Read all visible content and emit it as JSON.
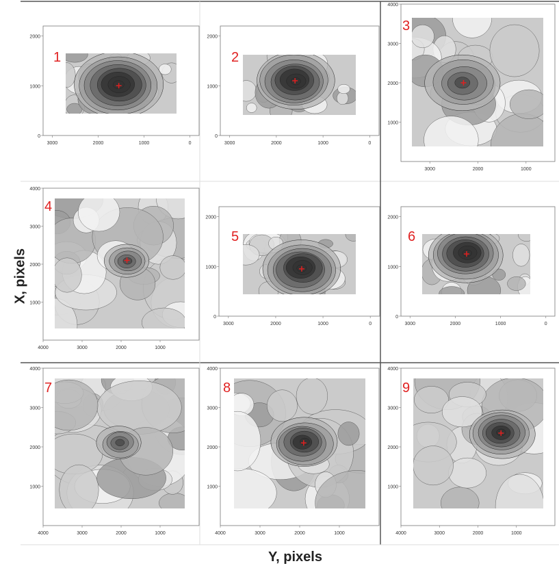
{
  "figure": {
    "xlabel": "Y, pixels",
    "ylabel": "X, pixels",
    "colors": {
      "peak_marker": "#e02020",
      "panel_number": "#e02020",
      "frame": "#555555"
    }
  },
  "chart_data": [
    {
      "type": "heatmap",
      "number": "1",
      "x_ticks": [
        "3000",
        "2000",
        "1000",
        "0"
      ],
      "y_ticks": [
        "2000",
        "1000",
        "0"
      ],
      "peak": {
        "x": 1550,
        "y": 1000
      },
      "peak_intensity": 0.85,
      "spread": 0.35
    },
    {
      "type": "heatmap",
      "number": "2",
      "x_ticks": [
        "3000",
        "2000",
        "1000",
        "0"
      ],
      "y_ticks": [
        "2000",
        "1000",
        "0"
      ],
      "peak": {
        "x": 1600,
        "y": 1100
      },
      "peak_intensity": 0.85,
      "spread": 0.3
    },
    {
      "type": "heatmap",
      "number": "3",
      "x_ticks": [
        "3000",
        "2000",
        "1000"
      ],
      "y_ticks": [
        "4000",
        "3000",
        "2000",
        "1000"
      ],
      "peak": {
        "x": 2300,
        "y": 2000
      },
      "peak_intensity": 0.55,
      "spread": 0.25
    },
    {
      "type": "heatmap",
      "number": "4",
      "x_ticks": [
        "4000",
        "3000",
        "2000",
        "1000"
      ],
      "y_ticks": [
        "4000",
        "3000",
        "2000",
        "1000"
      ],
      "peak": {
        "x": 1850,
        "y": 2100
      },
      "peak_intensity": 0.5,
      "spread": 0.15
    },
    {
      "type": "heatmap",
      "number": "5",
      "x_ticks": [
        "3000",
        "2000",
        "1000",
        "0"
      ],
      "y_ticks": [
        "2000",
        "1000",
        "0"
      ],
      "peak": {
        "x": 1450,
        "y": 950
      },
      "peak_intensity": 0.85,
      "spread": 0.3
    },
    {
      "type": "heatmap",
      "number": "6",
      "x_ticks": [
        "3000",
        "2000",
        "1000",
        "0"
      ],
      "y_ticks": [
        "2000",
        "1000",
        "0"
      ],
      "peak": {
        "x": 1750,
        "y": 1250
      },
      "peak_intensity": 0.85,
      "spread": 0.3
    },
    {
      "type": "heatmap",
      "number": "7",
      "x_ticks": [
        "4000",
        "3000",
        "2000",
        "1000"
      ],
      "y_ticks": [
        "4000",
        "3000",
        "2000",
        "1000"
      ],
      "peak": null,
      "peak_intensity": 0.55,
      "spread": 0.15
    },
    {
      "type": "heatmap",
      "number": "8",
      "x_ticks": [
        "4000",
        "3000",
        "2000",
        "1000"
      ],
      "y_ticks": [
        "4000",
        "3000",
        "2000",
        "1000"
      ],
      "peak": {
        "x": 1900,
        "y": 2100
      },
      "peak_intensity": 0.8,
      "spread": 0.22
    },
    {
      "type": "heatmap",
      "number": "9",
      "x_ticks": [
        "4000",
        "3000",
        "2000",
        "1000"
      ],
      "y_ticks": [
        "4000",
        "3000",
        "2000",
        "1000"
      ],
      "peak": {
        "x": 1400,
        "y": 2350
      },
      "peak_intensity": 0.8,
      "spread": 0.22
    }
  ]
}
